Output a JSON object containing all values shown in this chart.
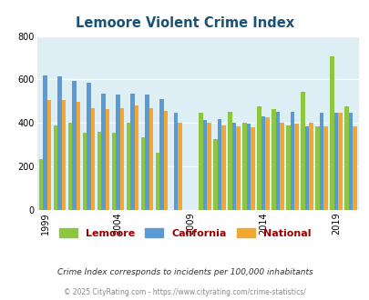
{
  "title": "Lemoore Violent Crime Index",
  "title_color": "#1a5276",
  "years": [
    1999,
    2000,
    2001,
    2002,
    2003,
    2004,
    2005,
    2006,
    2007,
    2008,
    2010,
    2011,
    2012,
    2013,
    2014,
    2015,
    2016,
    2017,
    2018,
    2019,
    2020
  ],
  "lemoore": [
    232,
    387,
    400,
    355,
    360,
    355,
    400,
    335,
    265,
    0,
    447,
    325,
    452,
    400,
    478,
    465,
    387,
    543,
    383,
    705,
    477
  ],
  "california": [
    620,
    615,
    595,
    585,
    535,
    530,
    535,
    530,
    510,
    447,
    415,
    420,
    400,
    395,
    430,
    450,
    450,
    385,
    447,
    447,
    447
  ],
  "national": [
    507,
    505,
    498,
    470,
    465,
    470,
    480,
    470,
    455,
    400,
    402,
    390,
    385,
    382,
    428,
    400,
    395,
    400,
    383,
    447,
    383
  ],
  "lemoore_color": "#8dc63f",
  "california_color": "#5b9bd5",
  "national_color": "#f0a830",
  "background_color": "#ddeef5",
  "ylim": [
    0,
    800
  ],
  "yticks": [
    0,
    200,
    400,
    600,
    800
  ],
  "footnote1": "Crime Index corresponds to incidents per 100,000 inhabitants",
  "footnote2": "© 2025 CityRating.com - https://www.cityrating.com/crime-statistics/",
  "legend_labels": [
    "Lemoore",
    "California",
    "National"
  ],
  "legend_text_color": "#990000"
}
